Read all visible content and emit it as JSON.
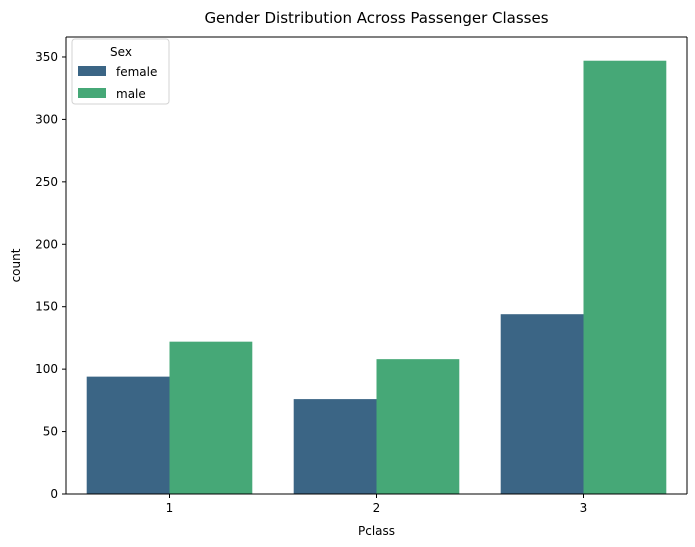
{
  "chart_data": {
    "type": "bar",
    "title": "Gender Distribution Across Passenger Classes",
    "xlabel": "Pclass",
    "ylabel": "count",
    "categories": [
      "1",
      "2",
      "3"
    ],
    "series": [
      {
        "name": "female",
        "values": [
          94,
          76,
          144
        ],
        "color": "#3b6585"
      },
      {
        "name": "male",
        "values": [
          122,
          108,
          347
        ],
        "color": "#46a877"
      }
    ],
    "ylim": [
      0,
      366
    ],
    "yticks": [
      0,
      50,
      100,
      150,
      200,
      250,
      300,
      350
    ],
    "grid": false,
    "legend": {
      "title": "Sex",
      "placement": "top-left"
    }
  }
}
